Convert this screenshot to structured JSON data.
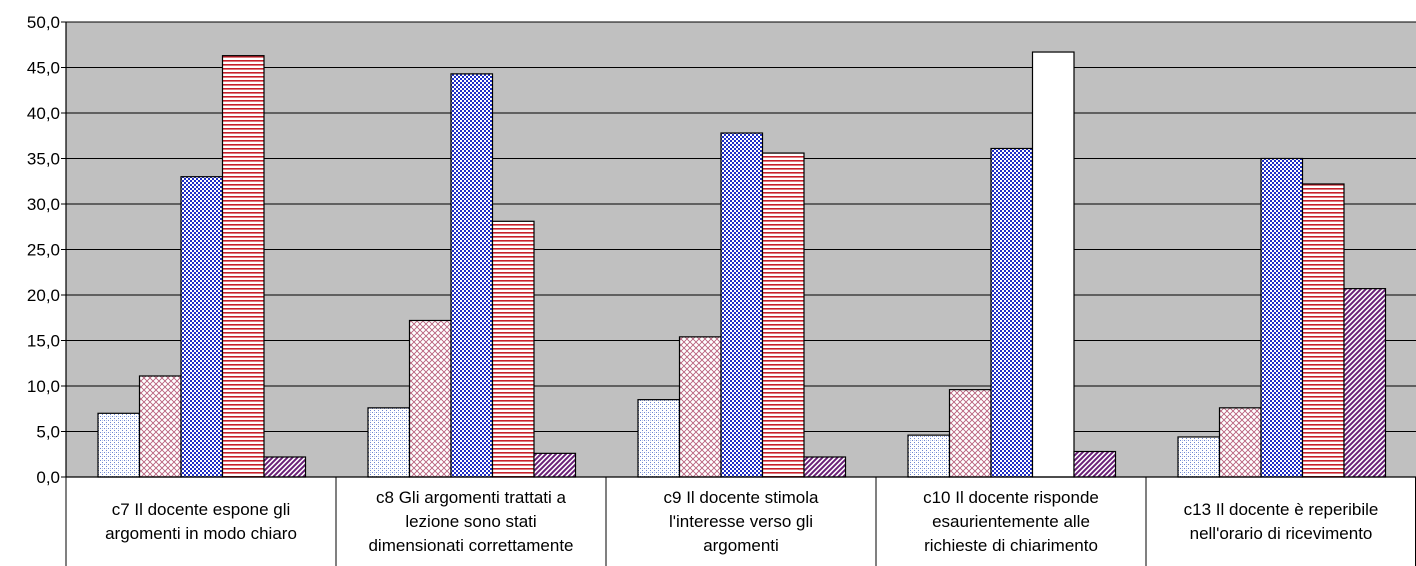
{
  "chart_data": {
    "type": "bar",
    "title": "",
    "xlabel": "",
    "ylabel": "",
    "ylim": [
      0,
      50
    ],
    "yticks": [
      "0,0",
      "5,0",
      "10,0",
      "15,0",
      "20,0",
      "25,0",
      "30,0",
      "35,0",
      "40,0",
      "45,0",
      "50,0"
    ],
    "grid": true,
    "legend": "none",
    "categories": [
      [
        "c7 Il docente espone gli",
        "argomenti in modo chiaro"
      ],
      [
        "c8 Gli argomenti trattati a",
        "lezione sono stati",
        "dimensionati correttamente"
      ],
      [
        "c9 Il docente stimola",
        "l'interesse verso gli",
        "argomenti"
      ],
      [
        "c10 Il docente risponde",
        "esaurientemente alle",
        "richieste di chiarimento"
      ],
      [
        "c13 Il docente è reperibile",
        "nell'orario di ricevimento"
      ]
    ],
    "series": [
      {
        "values": [
          7.0,
          7.6,
          8.5,
          4.6,
          4.4
        ],
        "color": "#9db0e0",
        "pattern": "dots"
      },
      {
        "values": [
          11.1,
          17.2,
          15.4,
          9.6,
          7.6
        ],
        "color": "#c06080",
        "pattern": "crosshatch"
      },
      {
        "values": [
          33.0,
          44.3,
          37.8,
          36.1,
          35.0
        ],
        "color": "#1f2fc8",
        "pattern": "checker"
      },
      {
        "values": [
          46.3,
          28.1,
          35.6,
          46.7,
          32.2
        ],
        "color": "#c8202a",
        "pattern": "horizontal"
      },
      {
        "values": [
          2.2,
          2.6,
          2.2,
          2.8,
          20.7
        ],
        "color": "#6a1f78",
        "pattern": "diagonal"
      }
    ],
    "missing": [
      [
        3,
        3
      ]
    ]
  },
  "colors": {
    "plot_background": "#c0c0c0",
    "gridline": "#000000",
    "axis": "#000000"
  }
}
